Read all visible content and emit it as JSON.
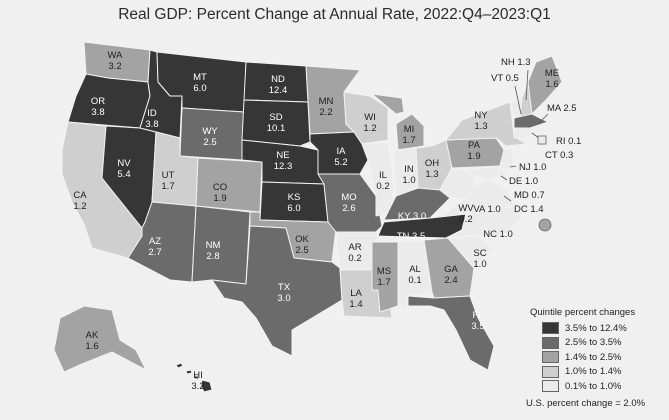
{
  "title": "Real GDP: Percent Change at Annual Rate, 2022:Q4–2023:Q1",
  "legend": {
    "heading": "Quintile percent changes",
    "items": [
      {
        "label": "3.5% to 12.4%",
        "color": "#363636"
      },
      {
        "label": "2.5% to 3.5%",
        "color": "#6b6b6b"
      },
      {
        "label": "1.4% to 2.5%",
        "color": "#a3a3a3"
      },
      {
        "label": "1.0% to 1.4%",
        "color": "#cfcfcf"
      },
      {
        "label": "0.1% to 1.0%",
        "color": "#ebebeb"
      }
    ],
    "us_total": "U.S. percent change = 2.0%"
  },
  "states": {
    "WA": {
      "abbr": "WA",
      "value": "3.2"
    },
    "OR": {
      "abbr": "OR",
      "value": "3.8"
    },
    "CA": {
      "abbr": "CA",
      "value": "1.2"
    },
    "NV": {
      "abbr": "NV",
      "value": "5.4"
    },
    "ID": {
      "abbr": "ID",
      "value": "3.8"
    },
    "MT": {
      "abbr": "MT",
      "value": "6.0"
    },
    "WY": {
      "abbr": "WY",
      "value": "2.5"
    },
    "UT": {
      "abbr": "UT",
      "value": "1.7"
    },
    "AZ": {
      "abbr": "AZ",
      "value": "2.7"
    },
    "CO": {
      "abbr": "CO",
      "value": "1.9"
    },
    "NM": {
      "abbr": "NM",
      "value": "2.8"
    },
    "ND": {
      "abbr": "ND",
      "value": "12.4"
    },
    "SD": {
      "abbr": "SD",
      "value": "10.1"
    },
    "NE": {
      "abbr": "NE",
      "value": "12.3"
    },
    "KS": {
      "abbr": "KS",
      "value": "6.0"
    },
    "OK": {
      "abbr": "OK",
      "value": "2.5"
    },
    "TX": {
      "abbr": "TX",
      "value": "3.0"
    },
    "MN": {
      "abbr": "MN",
      "value": "2.2"
    },
    "IA": {
      "abbr": "IA",
      "value": "5.2"
    },
    "MO": {
      "abbr": "MO",
      "value": "2.6"
    },
    "AR": {
      "abbr": "AR",
      "value": "0.2"
    },
    "LA": {
      "abbr": "LA",
      "value": "1.4"
    },
    "WI": {
      "abbr": "WI",
      "value": "1.2"
    },
    "IL": {
      "abbr": "IL",
      "value": "0.2"
    },
    "MI": {
      "abbr": "MI",
      "value": "1.7"
    },
    "IN": {
      "abbr": "IN",
      "value": "1.0"
    },
    "OH": {
      "abbr": "OH",
      "value": "1.3"
    },
    "KY": {
      "abbr": "KY",
      "value": "3.0"
    },
    "TN": {
      "abbr": "TN",
      "value": "3.5"
    },
    "MS": {
      "abbr": "MS",
      "value": "1.7"
    },
    "AL": {
      "abbr": "AL",
      "value": "0.1"
    },
    "GA": {
      "abbr": "GA",
      "value": "2.4"
    },
    "FL": {
      "abbr": "FL",
      "value": "3.5"
    },
    "SC": {
      "abbr": "SC",
      "value": "1.0"
    },
    "NC": {
      "abbr": "NC",
      "value": "1.0"
    },
    "VA": {
      "abbr": "VA",
      "value": "1.0"
    },
    "WV": {
      "abbr": "WV",
      "value": "0.2"
    },
    "PA": {
      "abbr": "PA",
      "value": "1.9"
    },
    "NY": {
      "abbr": "NY",
      "value": "1.3"
    },
    "ME": {
      "abbr": "ME",
      "value": "1.6"
    },
    "AK": {
      "abbr": "AK",
      "value": "1.6"
    },
    "HI": {
      "abbr": "HI",
      "value": "3.2"
    }
  },
  "callouts": {
    "NH": "NH 1.3",
    "VT": "VT 0.5",
    "MA": "MA 2.5",
    "RI": "RI 0.1",
    "CT": "CT 0.3",
    "NJ": "NJ 1.0",
    "DE": "DE 1.0",
    "MD": "MD 0.7",
    "DC": "DC 1.4"
  }
}
